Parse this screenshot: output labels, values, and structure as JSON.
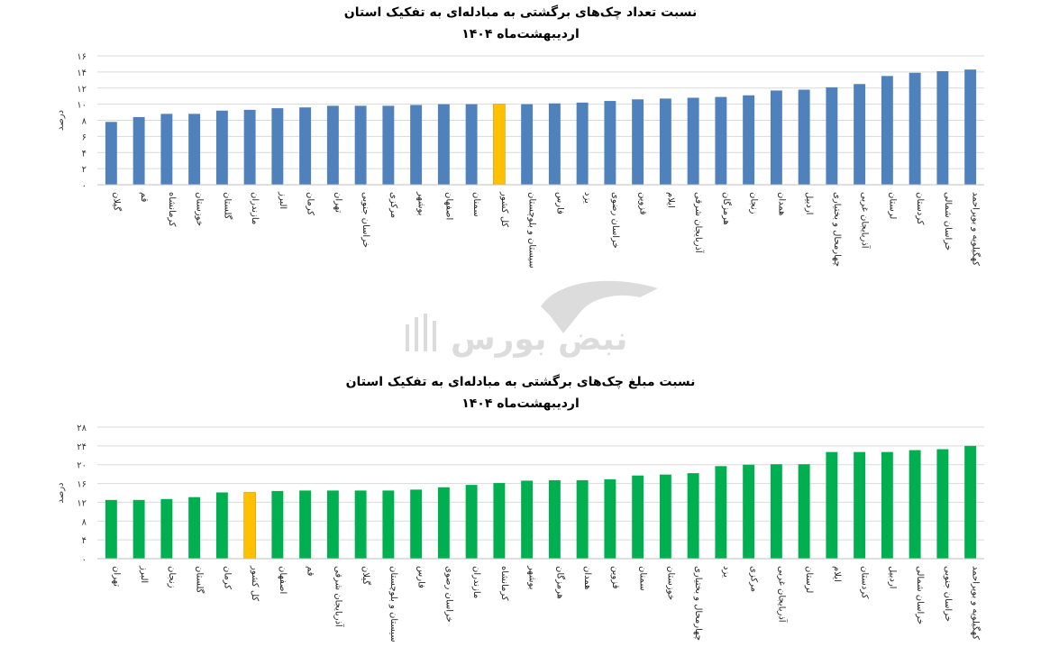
{
  "chart_data": [
    {
      "type": "bar",
      "title": "نسبت تعداد چک‌های برگشتی به مبادله‌ای به تفکیک استان",
      "subtitle": "اردیبهشت‌ماه ۱۴۰۴",
      "ylabel": "درصد",
      "ylim": [
        0,
        16
      ],
      "yticks": [
        "۰",
        "۲",
        "۴",
        "۶",
        "۸",
        "۱۰",
        "۱۲",
        "۱۴",
        "۱۶"
      ],
      "grid": true,
      "colors": {
        "bar": "#4F81BD",
        "highlight": "#FFC000"
      },
      "highlight": "کل کشور",
      "categories": [
        "گیلان",
        "قم",
        "کرمانشاه",
        "خوزستان",
        "گلستان",
        "مازندران",
        "البرز",
        "کرمان",
        "تهران",
        "خراسان جنوبی",
        "مرکزی",
        "بوشهر",
        "اصفهان",
        "سمنان",
        "کل کشور",
        "سیستان و بلوچستان",
        "فارس",
        "یزد",
        "خراسان رضوی",
        "قزوین",
        "ایلام",
        "آذربایجان شرقی",
        "هرمزگان",
        "زنجان",
        "همدان",
        "اردبیل",
        "چهارمحال و بختیاری",
        "آذربایجان غربی",
        "لرستان",
        "کردستان",
        "خراسان شمالی",
        "کهگیلویه و بویراحمد"
      ],
      "values": [
        7.8,
        8.4,
        8.8,
        8.8,
        9.2,
        9.3,
        9.5,
        9.6,
        9.8,
        9.8,
        9.8,
        9.9,
        10.0,
        10.0,
        10.0,
        10.0,
        10.1,
        10.2,
        10.4,
        10.6,
        10.7,
        10.8,
        10.9,
        11.1,
        11.7,
        11.8,
        12.1,
        12.5,
        13.5,
        13.9,
        14.1,
        14.3
      ]
    },
    {
      "type": "bar",
      "title": "نسبت مبلغ چک‌های برگشتی به مبادله‌ای به تفکیک استان",
      "subtitle": "اردیبهشت‌ماه ۱۴۰۴",
      "ylabel": "درصد",
      "ylim": [
        0,
        28
      ],
      "yticks": [
        "۰",
        "۴",
        "۸",
        "۱۲",
        "۱۶",
        "۲۰",
        "۲۴",
        "۲۸"
      ],
      "grid": true,
      "colors": {
        "bar": "#00B050",
        "highlight": "#FFC000"
      },
      "highlight": "کل کشور",
      "categories": [
        "تهران",
        "البرز",
        "زنجان",
        "گلستان",
        "کرمان",
        "کل کشور",
        "اصفهان",
        "قم",
        "آذربایجان شرقی",
        "گیلان",
        "سیستان و بلوچستان",
        "فارس",
        "خراسان رضوی",
        "مازندران",
        "کرمانشاه",
        "بوشهر",
        "هرمزگان",
        "همدان",
        "قزوین",
        "سمنان",
        "خوزستان",
        "چهارمحال و بختیاری",
        "یزد",
        "مرکزی",
        "آذربایجان غربی",
        "لرستان",
        "ایلام",
        "کردستان",
        "اردبیل",
        "خراسان شمالی",
        "خراسان جنوبی",
        "کهگیلویه و بویراحمد"
      ],
      "values": [
        12.5,
        12.5,
        12.7,
        13.1,
        14.1,
        14.1,
        14.4,
        14.5,
        14.5,
        14.5,
        14.5,
        14.7,
        15.2,
        15.7,
        16.1,
        16.6,
        16.7,
        16.7,
        16.9,
        17.7,
        17.9,
        18.2,
        19.7,
        20.0,
        20.1,
        20.1,
        22.7,
        22.7,
        22.7,
        23.1,
        23.3,
        24.0
      ]
    }
  ],
  "watermark": {
    "text": "نبض بورس",
    "icon": "bull-logo-icon"
  }
}
